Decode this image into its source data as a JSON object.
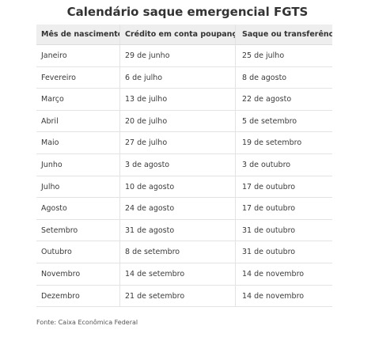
{
  "title": "Calendário saque emergencial FGTS",
  "table": {
    "headers": [
      "Mês de nascimento",
      "Crédito em conta poupança",
      "Saque ou transferência"
    ],
    "rows": [
      [
        "Janeiro",
        "29 de junho",
        "25 de julho"
      ],
      [
        "Fevereiro",
        "6 de julho",
        "8 de agosto"
      ],
      [
        "Março",
        "13 de julho",
        "22 de agosto"
      ],
      [
        "Abril",
        "20 de julho",
        "5 de setembro"
      ],
      [
        "Maio",
        "27 de julho",
        "19 de setembro"
      ],
      [
        "Junho",
        "3 de agosto",
        "3 de outubro"
      ],
      [
        "Julho",
        "10 de agosto",
        "17 de outubro"
      ],
      [
        "Agosto",
        "24 de agosto",
        "17 de outubro"
      ],
      [
        "Setembro",
        "31 de agosto",
        "31 de outubro"
      ],
      [
        "Outubro",
        "8 de setembro",
        "31 de outubro"
      ],
      [
        "Novembro",
        "14 de setembro",
        "14 de novembro"
      ],
      [
        "Dezembro",
        "21 de setembro",
        "14 de novembro"
      ]
    ]
  },
  "source": "Fonte: Caixa Econômica Federal"
}
